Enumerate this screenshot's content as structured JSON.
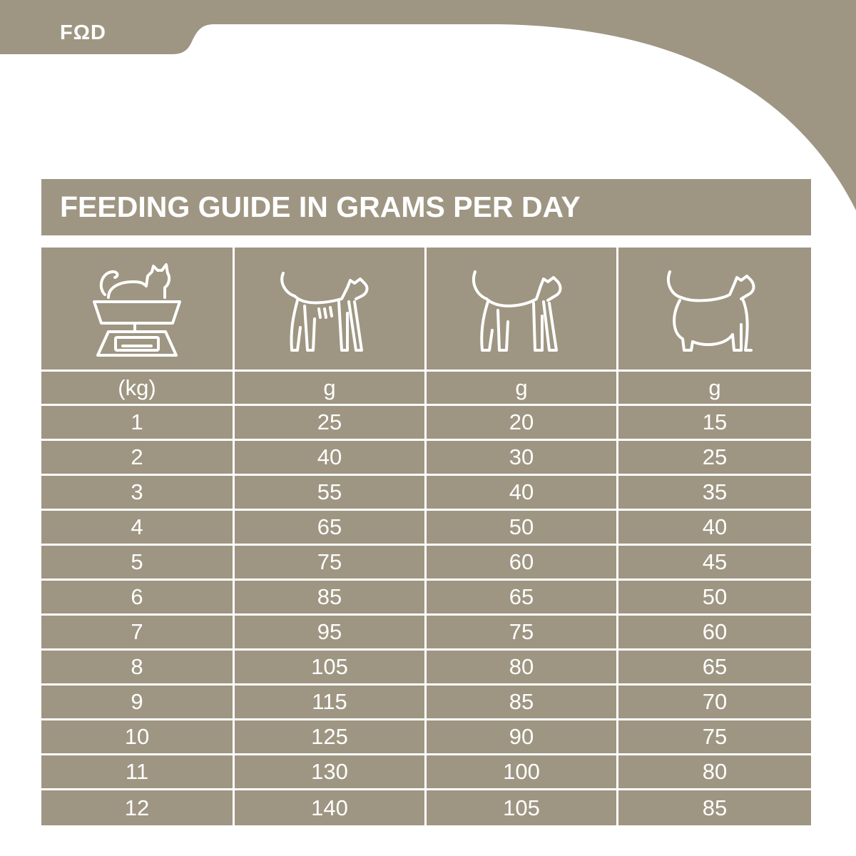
{
  "brand": {
    "logo_text": "FΩD"
  },
  "colors": {
    "taupe": "#9e9682",
    "white": "#ffffff"
  },
  "title": "FEEDING GUIDE IN GRAMS PER DAY",
  "icons": [
    "scale-with-cat-icon",
    "thin-cat-icon",
    "ideal-weight-cat-icon",
    "overweight-cat-icon"
  ],
  "units": {
    "weight": "(kg)",
    "under": "g",
    "ideal": "g",
    "over": "g"
  },
  "rows": [
    {
      "weight": "1",
      "under": "25",
      "ideal": "20",
      "over": "15"
    },
    {
      "weight": "2",
      "under": "40",
      "ideal": "30",
      "over": "25"
    },
    {
      "weight": "3",
      "under": "55",
      "ideal": "40",
      "over": "35"
    },
    {
      "weight": "4",
      "under": "65",
      "ideal": "50",
      "over": "40"
    },
    {
      "weight": "5",
      "under": "75",
      "ideal": "60",
      "over": "45"
    },
    {
      "weight": "6",
      "under": "85",
      "ideal": "65",
      "over": "50"
    },
    {
      "weight": "7",
      "under": "95",
      "ideal": "75",
      "over": "60"
    },
    {
      "weight": "8",
      "under": "105",
      "ideal": "80",
      "over": "65"
    },
    {
      "weight": "9",
      "under": "115",
      "ideal": "85",
      "over": "70"
    },
    {
      "weight": "10",
      "under": "125",
      "ideal": "90",
      "over": "75"
    },
    {
      "weight": "11",
      "under": "130",
      "ideal": "100",
      "over": "80"
    },
    {
      "weight": "12",
      "under": "140",
      "ideal": "105",
      "over": "85"
    }
  ]
}
